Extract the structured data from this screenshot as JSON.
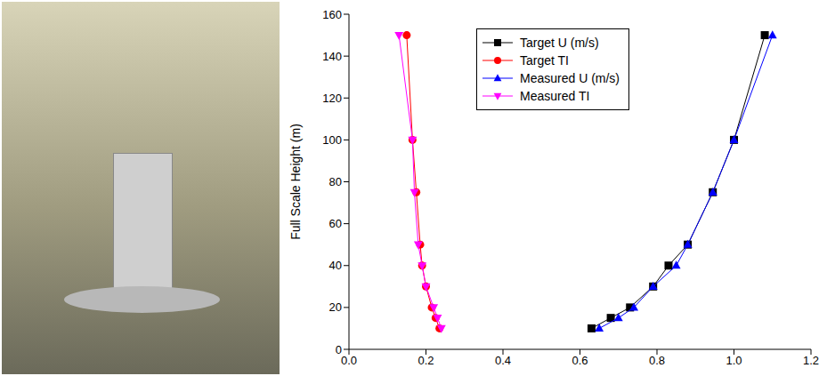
{
  "chart_data": {
    "type": "scatter",
    "ylabel": "Full Scale Height (m)",
    "xlim": [
      0,
      1.2
    ],
    "xticks": [
      {
        "value": 0,
        "label": "0.0"
      },
      0.2,
      0.4,
      0.6,
      0.8,
      {
        "value": 1,
        "label": "1.0"
      },
      1.2
    ],
    "ylim": [
      0,
      160
    ],
    "yticks": [
      0,
      20,
      40,
      60,
      80,
      100,
      120,
      140,
      160
    ],
    "grid": false,
    "legend": "top",
    "series": [
      {
        "name": "Target U (m/s)",
        "color": "#000000",
        "marker": "square",
        "line_style": "solid",
        "x": [
          0.63,
          0.68,
          0.73,
          0.79,
          0.83,
          0.88,
          0.945,
          1.0,
          1.08
        ],
        "values": [
          10,
          15,
          20,
          30,
          40,
          50,
          75,
          100,
          150
        ]
      },
      {
        "name": "Target TI",
        "color": "#ff0000",
        "marker": "circle",
        "line_style": "solid",
        "x": [
          0.235,
          0.225,
          0.215,
          0.2,
          0.19,
          0.185,
          0.175,
          0.165,
          0.15
        ],
        "values": [
          10,
          15,
          20,
          30,
          40,
          50,
          75,
          100,
          150
        ]
      },
      {
        "name": "Measured U (m/s)",
        "color": "#0000ff",
        "marker": "triangle",
        "line_style": "solid",
        "x": [
          0.65,
          0.7,
          0.74,
          0.79,
          0.85,
          0.88,
          0.945,
          1.0,
          1.1
        ],
        "values": [
          10,
          15,
          20,
          30,
          40,
          50,
          75,
          100,
          150
        ]
      },
      {
        "name": "Measured TI",
        "color": "#ff00ff",
        "marker": "triangle_down",
        "line_style": "solid",
        "x": [
          0.24,
          0.23,
          0.22,
          0.2,
          0.19,
          0.18,
          0.17,
          0.165,
          0.13
        ],
        "values": [
          10,
          15,
          20,
          30,
          40,
          50,
          75,
          100,
          150
        ]
      }
    ]
  }
}
